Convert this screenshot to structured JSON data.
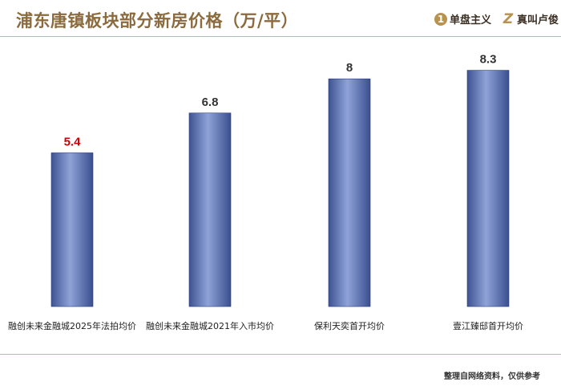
{
  "header": {
    "title": "浦东唐镇板块部分新房价格（万/平）",
    "brands": [
      {
        "icon": "number-one-icon",
        "glyph": "1",
        "label": "单盘主义"
      },
      {
        "icon": "letter-z-icon",
        "glyph": "Z",
        "label": "真叫卢俊"
      }
    ]
  },
  "footer": {
    "note": "整理自网络资料，仅供参考"
  },
  "chart_data": {
    "type": "bar",
    "title": "浦东唐镇板块部分新房价格（万/平）",
    "xlabel": "",
    "ylabel": "",
    "categories": [
      "融创未来金融城2025年法拍均价",
      "融创未来金融城2021年入市均价",
      "保利天奕首开均价",
      "壹江臻邸首开均价"
    ],
    "values": [
      5.4,
      6.8,
      8,
      8.3
    ],
    "value_labels": [
      "5.4",
      "6.8",
      "8",
      "8.3"
    ],
    "ylim": [
      0,
      9.5
    ],
    "grid": false,
    "legend": "none",
    "highlight_index": 0,
    "colors": {
      "bar": "#6f86c4",
      "label": "#333333",
      "highlight_label": "#cc0000"
    }
  }
}
